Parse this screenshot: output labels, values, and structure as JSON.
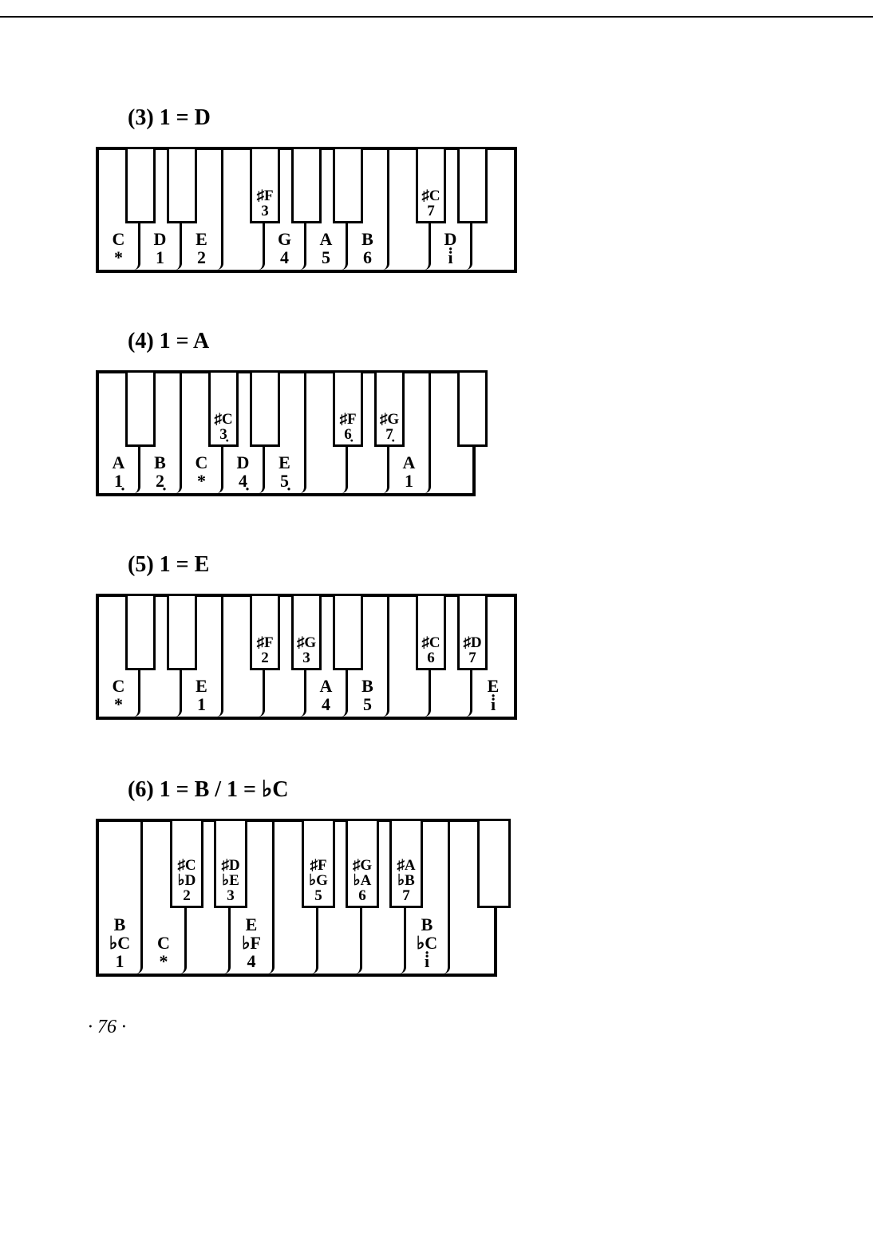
{
  "page_number": "· 76 ·",
  "colors": {
    "background": "#ffffff",
    "line": "#000000"
  },
  "diagrams": [
    {
      "id": "d1",
      "title": "(3) 1 = D",
      "keyboard_height": 150,
      "white_key_width": 52,
      "black_key_width": 38,
      "black_key_height": 96,
      "white_keys": [
        {
          "label": "C",
          "sub": "*"
        },
        {
          "label": "D",
          "sub": "1"
        },
        {
          "label": "E",
          "sub": "2"
        },
        {
          "label": "",
          "sub": ""
        },
        {
          "label": "G",
          "sub": "4"
        },
        {
          "label": "A",
          "sub": "5"
        },
        {
          "label": "B",
          "sub": "6"
        },
        {
          "label": "",
          "sub": ""
        },
        {
          "label": "D",
          "sub": "i̇"
        },
        {
          "label": "",
          "sub": ""
        }
      ],
      "black_keys": [
        {
          "lines": [],
          "after_white": 0
        },
        {
          "lines": [],
          "after_white": 1
        },
        {
          "lines": [
            "♯F",
            "3"
          ],
          "after_white": 3
        },
        {
          "lines": [],
          "after_white": 4
        },
        {
          "lines": [],
          "after_white": 5
        },
        {
          "lines": [
            "♯C",
            "7"
          ],
          "after_white": 7
        },
        {
          "lines": [],
          "after_white": 8
        }
      ]
    },
    {
      "id": "d2",
      "title": "(4) 1 = A",
      "keyboard_height": 150,
      "white_key_width": 52,
      "black_key_width": 38,
      "black_key_height": 96,
      "white_keys": [
        {
          "label": "A",
          "sub": "1̣"
        },
        {
          "label": "B",
          "sub": "2̣"
        },
        {
          "label": "C",
          "sub": "*"
        },
        {
          "label": "D",
          "sub": "4̣"
        },
        {
          "label": "E",
          "sub": "5̣"
        },
        {
          "label": "",
          "sub": ""
        },
        {
          "label": "",
          "sub": ""
        },
        {
          "label": "A",
          "sub": "1"
        },
        {
          "label": "",
          "sub": ""
        }
      ],
      "black_keys": [
        {
          "lines": [],
          "after_white": 0
        },
        {
          "lines": [
            "♯C",
            "3̣"
          ],
          "after_white": 2
        },
        {
          "lines": [],
          "after_white": 3
        },
        {
          "lines": [
            "♯F",
            "6̣"
          ],
          "after_white": 5
        },
        {
          "lines": [
            "♯G",
            "7̣"
          ],
          "after_white": 6
        },
        {
          "lines": [],
          "after_white": 8
        }
      ]
    },
    {
      "id": "d3",
      "title": "(5) 1 = E",
      "keyboard_height": 150,
      "white_key_width": 52,
      "black_key_width": 38,
      "black_key_height": 96,
      "white_keys": [
        {
          "label": "C",
          "sub": "*"
        },
        {
          "label": "",
          "sub": ""
        },
        {
          "label": "E",
          "sub": "1"
        },
        {
          "label": "",
          "sub": ""
        },
        {
          "label": "",
          "sub": ""
        },
        {
          "label": "A",
          "sub": "4"
        },
        {
          "label": "B",
          "sub": "5"
        },
        {
          "label": "",
          "sub": ""
        },
        {
          "label": "",
          "sub": ""
        },
        {
          "label": "E",
          "sub": "i̇"
        }
      ],
      "black_keys": [
        {
          "lines": [],
          "after_white": 0
        },
        {
          "lines": [],
          "after_white": 1
        },
        {
          "lines": [
            "♯F",
            "2"
          ],
          "after_white": 3
        },
        {
          "lines": [
            "♯G",
            "3"
          ],
          "after_white": 4
        },
        {
          "lines": [],
          "after_white": 5
        },
        {
          "lines": [
            "♯C",
            "6"
          ],
          "after_white": 7
        },
        {
          "lines": [
            "♯D",
            "7"
          ],
          "after_white": 8
        }
      ]
    },
    {
      "id": "d4",
      "title": "(6) 1 = B / 1 = ♭C",
      "keyboard_height": 190,
      "white_key_width": 55,
      "black_key_width": 42,
      "black_key_height": 112,
      "white_keys": [
        {
          "label": "B",
          "sub": "♭C",
          "sub2": "1"
        },
        {
          "label": "C",
          "sub": "",
          "sub2": "*"
        },
        {
          "label": "",
          "sub": ""
        },
        {
          "label": "E",
          "sub": "♭F",
          "sub2": "4"
        },
        {
          "label": "",
          "sub": ""
        },
        {
          "label": "",
          "sub": ""
        },
        {
          "label": "",
          "sub": ""
        },
        {
          "label": "B",
          "sub": "♭C",
          "sub2": "i̇"
        },
        {
          "label": "",
          "sub": ""
        }
      ],
      "black_keys": [
        {
          "lines": [
            "♯C",
            "♭D",
            "2"
          ],
          "after_white": 1
        },
        {
          "lines": [
            "♯D",
            "♭E",
            "3"
          ],
          "after_white": 2
        },
        {
          "lines": [
            "♯F",
            "♭G",
            "5"
          ],
          "after_white": 4
        },
        {
          "lines": [
            "♯G",
            "♭A",
            "6"
          ],
          "after_white": 5
        },
        {
          "lines": [
            "♯A",
            "♭B",
            "7"
          ],
          "after_white": 6
        },
        {
          "lines": [],
          "after_white": 8
        }
      ]
    }
  ]
}
